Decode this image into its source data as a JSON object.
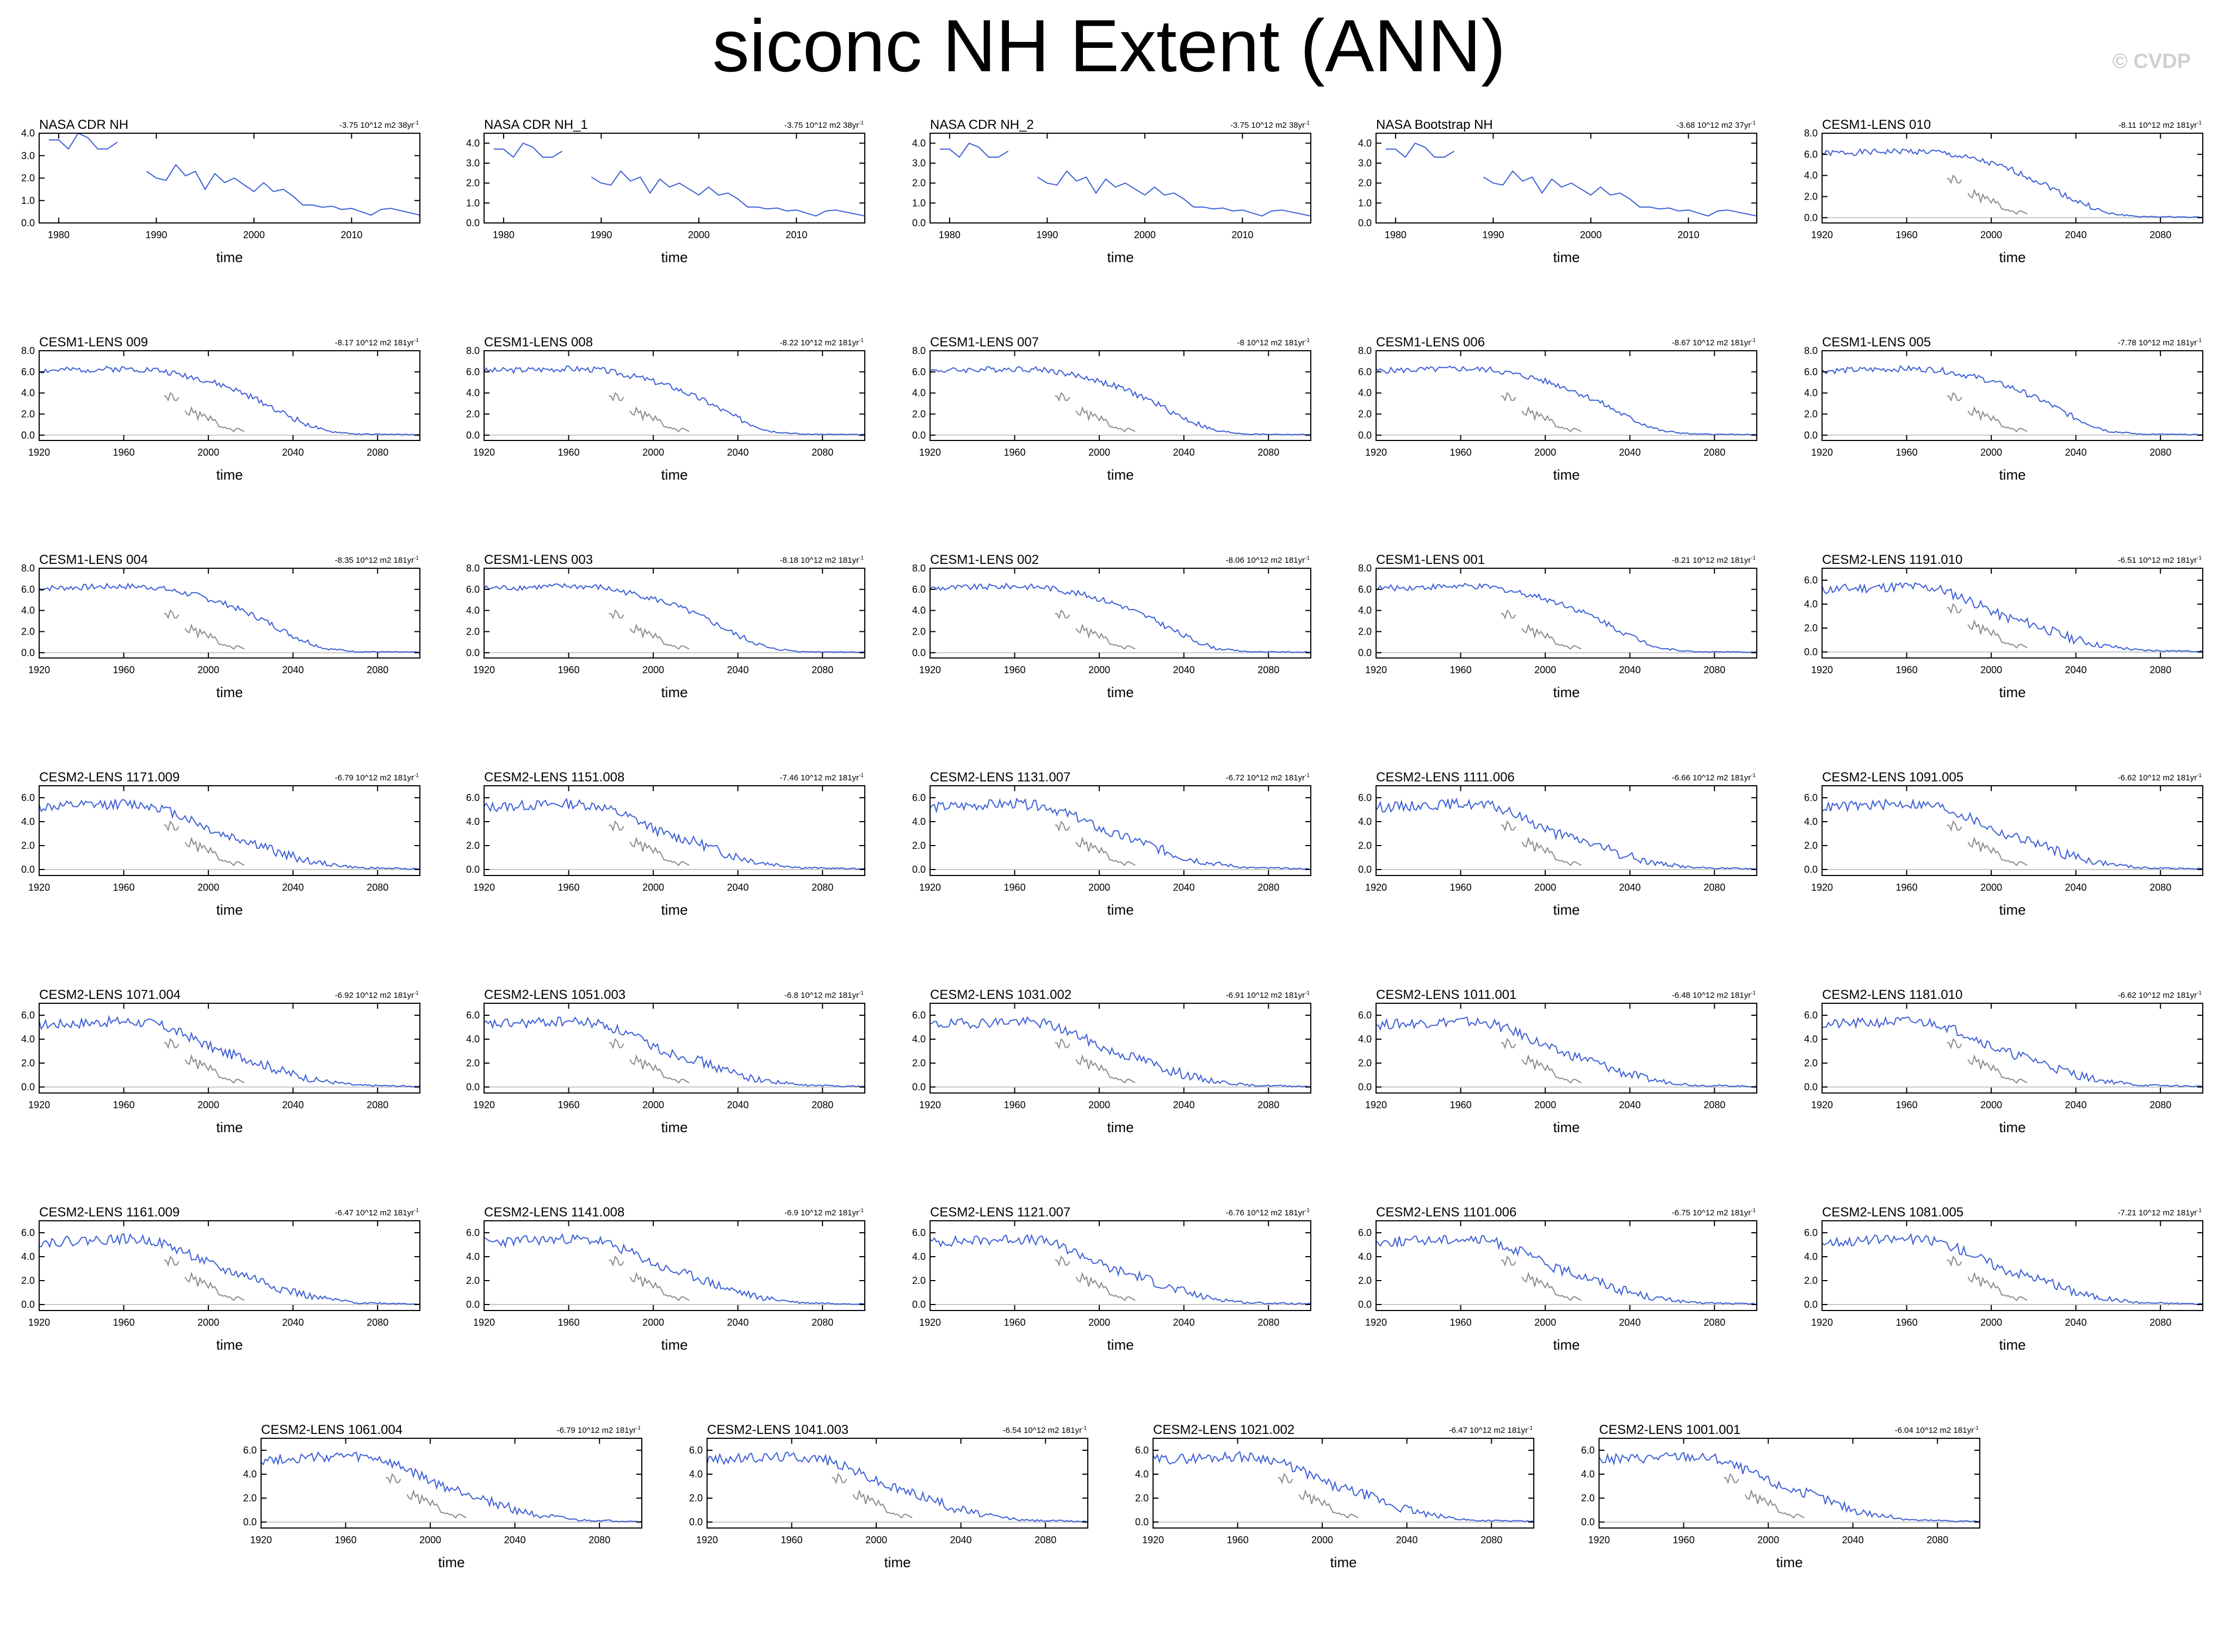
{
  "title": "siconc NH Extent (ANN)",
  "copyright": "© CVDP",
  "colors": {
    "model": "#3d5fd6",
    "observation": "#8c8c8c",
    "zero_line": "#c8c8c8",
    "frame": "#000000"
  },
  "chart_data": {
    "type": "line",
    "xlabel": "time",
    "ylabel": "",
    "observations": {
      "name": "NASA CDR NH",
      "x": [
        1979,
        1980,
        1981,
        1982,
        1983,
        1984,
        1985,
        1986,
        1989,
        1990,
        1991,
        1992,
        1993,
        1994,
        1995,
        1996,
        1997,
        1998,
        1999,
        2000,
        2001,
        2002,
        2003,
        2004,
        2005,
        2006,
        2007,
        2008,
        2009,
        2010,
        2011,
        2012,
        2013,
        2014,
        2015,
        2016,
        2017
      ],
      "y": [
        3.7,
        3.7,
        3.3,
        4.0,
        3.8,
        3.3,
        3.3,
        3.6,
        2.3,
        2.0,
        1.9,
        2.6,
        2.1,
        2.3,
        1.5,
        2.2,
        1.8,
        2.0,
        1.7,
        1.4,
        1.8,
        1.4,
        1.5,
        1.2,
        0.8,
        0.8,
        0.7,
        0.75,
        0.6,
        0.65,
        0.5,
        0.35,
        0.6,
        0.65,
        0.55,
        0.45,
        0.35
      ]
    },
    "panels": [
      {
        "title": "NASA CDR NH",
        "trend": "-3.75 10^12 m2 38yr",
        "kind": "obs",
        "xlim": [
          1978,
          2017
        ],
        "ylim": [
          0,
          4
        ],
        "yticks": [
          "0.0",
          "1.0",
          "2.0",
          "3.0",
          "4.0"
        ],
        "xticks": [
          "1980",
          "1990",
          "2000",
          "2010"
        ],
        "xtick_values": [
          1980,
          1990,
          2000,
          2010
        ]
      },
      {
        "title": "NASA CDR NH_1",
        "trend": "-3.75 10^12 m2 38yr",
        "kind": "obs",
        "xlim": [
          1978,
          2017
        ],
        "ylim": [
          0,
          4.5
        ],
        "yticks": [
          "0.0",
          "1.0",
          "2.0",
          "3.0",
          "4.0"
        ],
        "xticks": [
          "1980",
          "1990",
          "2000",
          "2010"
        ],
        "xtick_values": [
          1980,
          1990,
          2000,
          2010
        ]
      },
      {
        "title": "NASA CDR NH_2",
        "trend": "-3.75 10^12 m2 38yr",
        "kind": "obs",
        "xlim": [
          1978,
          2017
        ],
        "ylim": [
          0,
          4.5
        ],
        "yticks": [
          "0.0",
          "1.0",
          "2.0",
          "3.0",
          "4.0"
        ],
        "xticks": [
          "1980",
          "1990",
          "2000",
          "2010"
        ],
        "xtick_values": [
          1980,
          1990,
          2000,
          2010
        ]
      },
      {
        "title": "NASA Bootstrap NH",
        "trend": "-3.68 10^12 m2 37yr",
        "kind": "obs",
        "xlim": [
          1978,
          2017
        ],
        "ylim": [
          0,
          4.5
        ],
        "yticks": [
          "0.0",
          "1.0",
          "2.0",
          "3.0",
          "4.0"
        ],
        "xticks": [
          "1980",
          "1990",
          "2000",
          "2010"
        ],
        "xtick_values": [
          1980,
          1990,
          2000,
          2010
        ]
      },
      {
        "title": "CESM1-LENS 010",
        "trend": "-8.11 10^12 m2 181yr",
        "kind": "model",
        "family": "cesm1",
        "seed": 1
      },
      {
        "title": "CESM1-LENS 009",
        "trend": "-8.17 10^12 m2 181yr",
        "kind": "model",
        "family": "cesm1",
        "seed": 2
      },
      {
        "title": "CESM1-LENS 008",
        "trend": "-8.22 10^12 m2 181yr",
        "kind": "model",
        "family": "cesm1",
        "seed": 3
      },
      {
        "title": "CESM1-LENS 007",
        "trend": "-8 10^12 m2 181yr",
        "kind": "model",
        "family": "cesm1",
        "seed": 4
      },
      {
        "title": "CESM1-LENS 006",
        "trend": "-8.67 10^12 m2 181yr",
        "kind": "model",
        "family": "cesm1",
        "seed": 5
      },
      {
        "title": "CESM1-LENS 005",
        "trend": "-7.78 10^12 m2 181yr",
        "kind": "model",
        "family": "cesm1",
        "seed": 6
      },
      {
        "title": "CESM1-LENS 004",
        "trend": "-8.35 10^12 m2 181yr",
        "kind": "model",
        "family": "cesm1",
        "seed": 7
      },
      {
        "title": "CESM1-LENS 003",
        "trend": "-8.18 10^12 m2 181yr",
        "kind": "model",
        "family": "cesm1",
        "seed": 8
      },
      {
        "title": "CESM1-LENS 002",
        "trend": "-8.06 10^12 m2 181yr",
        "kind": "model",
        "family": "cesm1",
        "seed": 9
      },
      {
        "title": "CESM1-LENS 001",
        "trend": "-8.21 10^12 m2 181yr",
        "kind": "model",
        "family": "cesm1",
        "seed": 10
      },
      {
        "title": "CESM2-LENS 1191.010",
        "trend": "-6.51 10^12 m2 181yr",
        "kind": "model",
        "family": "cesm2",
        "seed": 11
      },
      {
        "title": "CESM2-LENS 1171.009",
        "trend": "-6.79 10^12 m2 181yr",
        "kind": "model",
        "family": "cesm2",
        "seed": 12
      },
      {
        "title": "CESM2-LENS 1151.008",
        "trend": "-7.46 10^12 m2 181yr",
        "kind": "model",
        "family": "cesm2",
        "seed": 13
      },
      {
        "title": "CESM2-LENS 1131.007",
        "trend": "-6.72 10^12 m2 181yr",
        "kind": "model",
        "family": "cesm2",
        "seed": 14
      },
      {
        "title": "CESM2-LENS 1111.006",
        "trend": "-6.66 10^12 m2 181yr",
        "kind": "model",
        "family": "cesm2",
        "seed": 15
      },
      {
        "title": "CESM2-LENS 1091.005",
        "trend": "-6.62 10^12 m2 181yr",
        "kind": "model",
        "family": "cesm2",
        "seed": 16
      },
      {
        "title": "CESM2-LENS 1071.004",
        "trend": "-6.92 10^12 m2 181yr",
        "kind": "model",
        "family": "cesm2",
        "seed": 17
      },
      {
        "title": "CESM2-LENS 1051.003",
        "trend": "-6.8 10^12 m2 181yr",
        "kind": "model",
        "family": "cesm2",
        "seed": 18
      },
      {
        "title": "CESM2-LENS 1031.002",
        "trend": "-6.91 10^12 m2 181yr",
        "kind": "model",
        "family": "cesm2",
        "seed": 19
      },
      {
        "title": "CESM2-LENS 1011.001",
        "trend": "-6.48 10^12 m2 181yr",
        "kind": "model",
        "family": "cesm2",
        "seed": 20
      },
      {
        "title": "CESM2-LENS 1181.010",
        "trend": "-6.62 10^12 m2 181yr",
        "kind": "model",
        "family": "cesm2",
        "seed": 21
      },
      {
        "title": "CESM2-LENS 1161.009",
        "trend": "-6.47 10^12 m2 181yr",
        "kind": "model",
        "family": "cesm2",
        "seed": 22
      },
      {
        "title": "CESM2-LENS 1141.008",
        "trend": "-6.9 10^12 m2 181yr",
        "kind": "model",
        "family": "cesm2",
        "seed": 23
      },
      {
        "title": "CESM2-LENS 1121.007",
        "trend": "-6.76 10^12 m2 181yr",
        "kind": "model",
        "family": "cesm2",
        "seed": 24
      },
      {
        "title": "CESM2-LENS 1101.006",
        "trend": "-6.75 10^12 m2 181yr",
        "kind": "model",
        "family": "cesm2",
        "seed": 25
      },
      {
        "title": "CESM2-LENS 1081.005",
        "trend": "-7.21 10^12 m2 181yr",
        "kind": "model",
        "family": "cesm2",
        "seed": 26
      },
      {
        "title": "CESM2-LENS 1061.004",
        "trend": "-6.79 10^12 m2 181yr",
        "kind": "model",
        "family": "cesm2",
        "seed": 27
      },
      {
        "title": "CESM2-LENS 1041.003",
        "trend": "-6.54 10^12 m2 181yr",
        "kind": "model",
        "family": "cesm2",
        "seed": 28
      },
      {
        "title": "CESM2-LENS 1021.002",
        "trend": "-6.47 10^12 m2 181yr",
        "kind": "model",
        "family": "cesm2",
        "seed": 29
      },
      {
        "title": "CESM2-LENS 1001.001",
        "trend": "-6.04 10^12 m2 181yr",
        "kind": "model",
        "family": "cesm2",
        "seed": 30
      }
    ],
    "model_axes": {
      "xlim": [
        1920,
        2100
      ],
      "xticks": [
        "1920",
        "1960",
        "2000",
        "2040",
        "2080"
      ],
      "xtick_values": [
        1920,
        1960,
        2000,
        2040,
        2080
      ],
      "cesm1": {
        "ylim": [
          -0.5,
          8.0
        ],
        "yticks": [
          "0.0",
          "2.0",
          "4.0",
          "6.0",
          "8.0"
        ],
        "ytick_values": [
          0,
          2,
          4,
          6,
          8
        ]
      },
      "cesm2": {
        "ylim": [
          -0.5,
          7.0
        ],
        "yticks": [
          "0.0",
          "2.0",
          "4.0",
          "6.0"
        ],
        "ytick_values": [
          0,
          2,
          4,
          6
        ]
      }
    },
    "model_profiles": {
      "cesm1": {
        "x": [
          1920,
          1960,
          1975,
          1995,
          2010,
          2025,
          2040,
          2055,
          2070,
          2100
        ],
        "y": [
          6.1,
          6.3,
          6.2,
          5.4,
          4.5,
          3.2,
          1.6,
          0.4,
          0.1,
          0.05
        ],
        "noise": 0.28
      },
      "cesm2": {
        "x": [
          1920,
          1960,
          1975,
          1990,
          2005,
          2020,
          2035,
          2050,
          2070,
          2100
        ],
        "y": [
          5.2,
          5.5,
          5.3,
          4.3,
          3.0,
          2.3,
          1.3,
          0.6,
          0.15,
          0.05
        ],
        "noise": 0.42
      }
    }
  }
}
